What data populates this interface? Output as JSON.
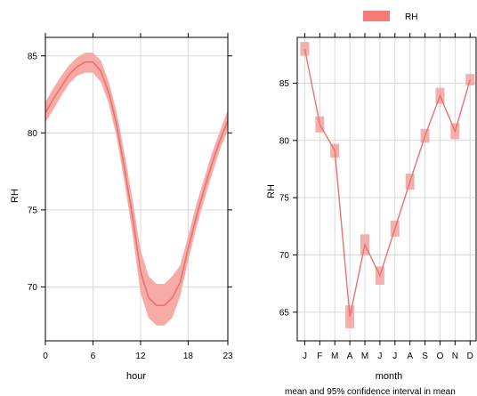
{
  "caption": "mean and 95% confidence interval in mean",
  "colors": {
    "line": "#e8736f",
    "band": "#f7aaa6",
    "box": "#f3a19d",
    "legend_swatch": "#f47c76",
    "grid": "#d9d9d9",
    "axis": "#000000"
  },
  "chart_data": [
    {
      "type": "line",
      "xlabel": "hour",
      "ylabel": "RH",
      "xlim": [
        0,
        23
      ],
      "ylim": [
        66.5,
        86.2
      ],
      "x_ticks": [
        0,
        6,
        12,
        18,
        23
      ],
      "y_ticks": [
        70,
        75,
        80,
        85
      ],
      "grid": true,
      "series": [
        {
          "x": [
            0,
            1,
            2,
            3,
            4,
            5,
            6,
            7,
            8,
            9,
            10,
            11,
            12,
            13,
            14,
            15,
            16,
            17,
            18,
            19,
            20,
            21,
            22,
            23
          ],
          "mean": [
            81.3,
            82.2,
            83.0,
            83.8,
            84.3,
            84.6,
            84.6,
            84.0,
            82.6,
            80.5,
            77.6,
            74.5,
            71.0,
            69.3,
            68.8,
            68.8,
            69.3,
            70.3,
            72.5,
            74.5,
            76.3,
            78.0,
            79.5,
            80.8
          ],
          "lower": [
            80.7,
            81.5,
            82.4,
            83.2,
            83.7,
            83.9,
            83.9,
            83.3,
            81.9,
            79.7,
            76.7,
            73.4,
            69.6,
            68.0,
            67.5,
            67.5,
            68.0,
            69.4,
            71.7,
            73.8,
            75.6,
            77.3,
            78.9,
            80.2
          ],
          "upper": [
            82.0,
            82.9,
            83.7,
            84.4,
            84.9,
            85.2,
            85.2,
            84.7,
            83.3,
            81.3,
            78.6,
            75.6,
            72.4,
            70.7,
            70.2,
            70.2,
            70.7,
            71.4,
            73.3,
            75.3,
            77.0,
            78.7,
            80.1,
            81.5
          ]
        }
      ]
    },
    {
      "type": "line",
      "xlabel": "month",
      "ylabel": "RH",
      "categories": [
        "J",
        "F",
        "M",
        "A",
        "M",
        "J",
        "J",
        "A",
        "S",
        "O",
        "N",
        "D"
      ],
      "ylim": [
        62.5,
        89.0
      ],
      "y_ticks": [
        65,
        70,
        75,
        80,
        85
      ],
      "grid": true,
      "legend": {
        "position": "top-right",
        "entries": [
          "RH"
        ]
      },
      "series": [
        {
          "name": "RH",
          "mean": [
            88.0,
            81.4,
            79.1,
            64.6,
            70.9,
            68.2,
            72.3,
            76.4,
            80.4,
            83.9,
            80.8,
            85.3
          ],
          "lower": [
            87.4,
            80.7,
            78.5,
            63.6,
            70.0,
            67.4,
            71.6,
            75.7,
            79.8,
            83.2,
            80.1,
            84.8
          ],
          "upper": [
            88.6,
            82.1,
            79.7,
            65.6,
            71.8,
            69.0,
            73.0,
            77.1,
            81.0,
            84.6,
            81.5,
            85.8
          ]
        }
      ]
    }
  ]
}
